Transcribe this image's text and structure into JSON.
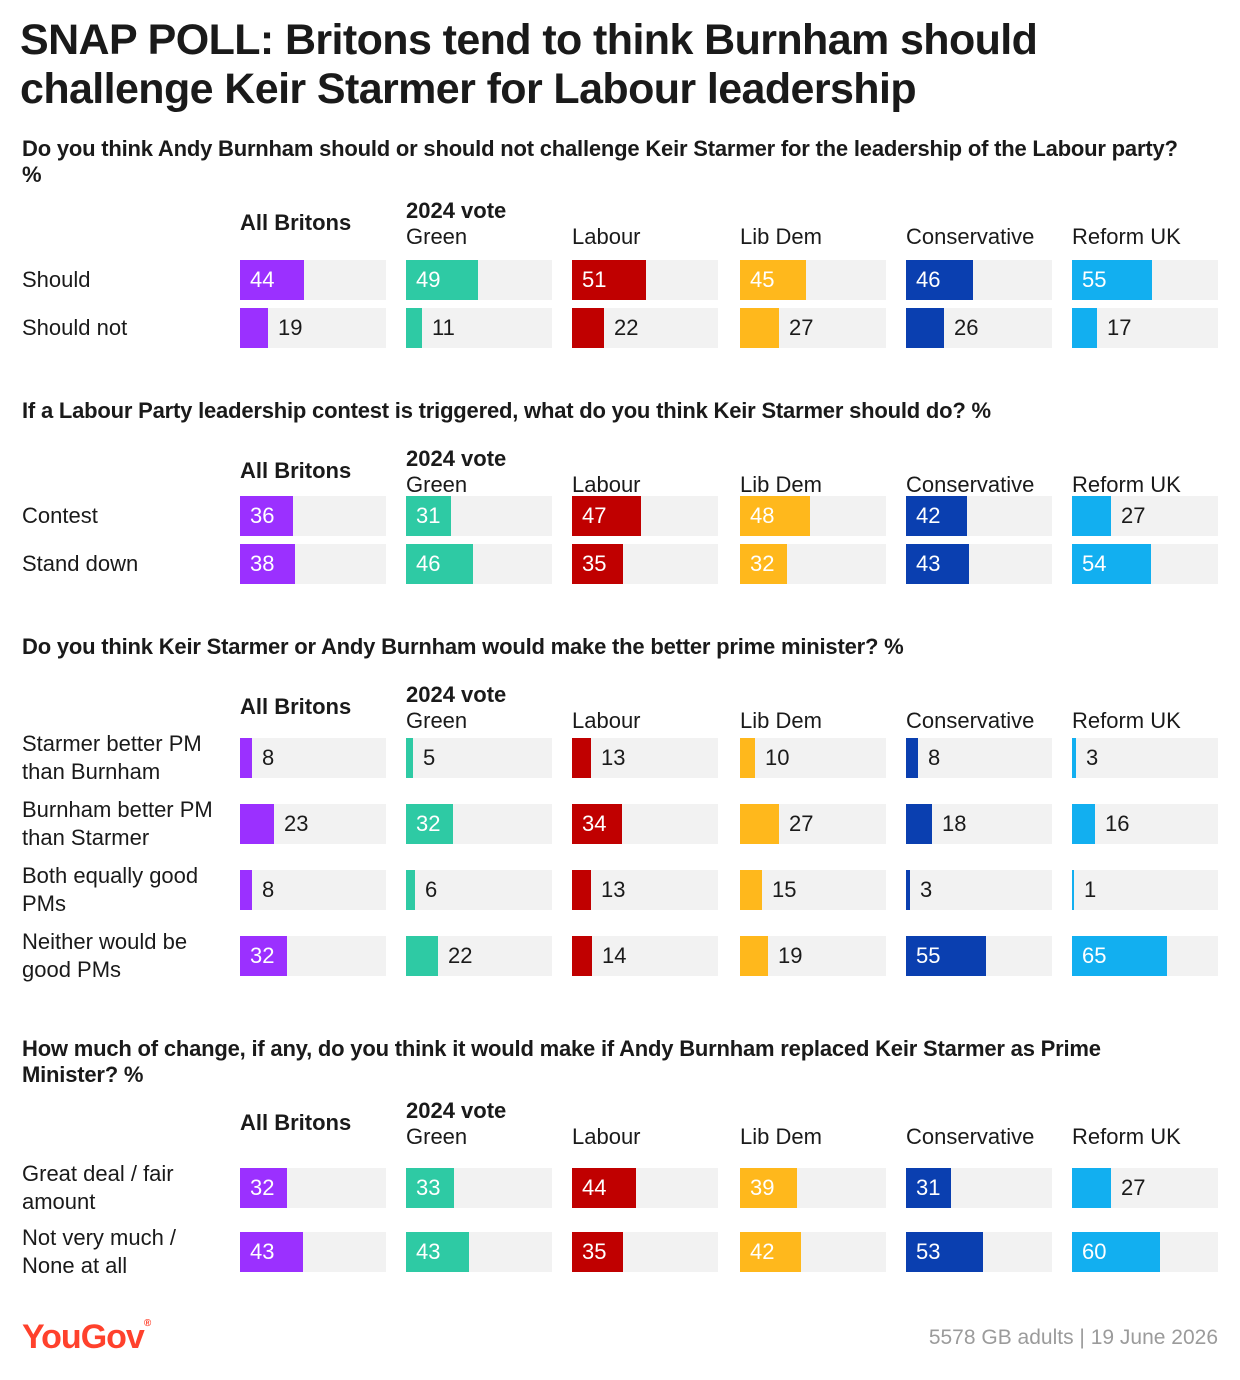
{
  "title": "SNAP POLL: Britons tend to think Burnham should challenge Keir Starmer for Labour leadership",
  "columns": {
    "all_label": "All Britons",
    "vote_group_label": "2024 vote",
    "parties": [
      "Green",
      "Labour",
      "Lib Dem",
      "Conservative",
      "Reform UK"
    ]
  },
  "colors": {
    "all": "#9b30ff",
    "green": "#2ecaa4",
    "labour": "#c00000",
    "libdem": "#ffb81c",
    "conservative": "#0a3fb0",
    "reform": "#12aff0",
    "track": "#f2f2f2"
  },
  "chart_data": [
    {
      "type": "bar",
      "title": "Do you think Andy Burnham should or should not challenge Keir Starmer for the leadership of the Labour party? %",
      "categories": [
        "All Britons",
        "Green",
        "Labour",
        "Lib Dem",
        "Conservative",
        "Reform UK"
      ],
      "rows": [
        {
          "label": "Should",
          "values": [
            44,
            49,
            51,
            45,
            46,
            55
          ]
        },
        {
          "label": "Should not",
          "values": [
            19,
            11,
            22,
            27,
            26,
            17
          ]
        }
      ]
    },
    {
      "type": "bar",
      "title": "If a Labour Party leadership contest is triggered, what do you think Keir Starmer should do? %",
      "categories": [
        "All Britons",
        "Green",
        "Labour",
        "Lib Dem",
        "Conservative",
        "Reform UK"
      ],
      "rows": [
        {
          "label": "Contest",
          "values": [
            36,
            31,
            47,
            48,
            42,
            27
          ]
        },
        {
          "label": "Stand down",
          "values": [
            38,
            46,
            35,
            32,
            43,
            54
          ]
        }
      ]
    },
    {
      "type": "bar",
      "title": "Do you think Keir Starmer or Andy Burnham would make the better prime minister? %",
      "categories": [
        "All Britons",
        "Green",
        "Labour",
        "Lib Dem",
        "Conservative",
        "Reform UK"
      ],
      "rows": [
        {
          "label": "Starmer better PM than Burnham",
          "values": [
            8,
            5,
            13,
            10,
            8,
            3
          ]
        },
        {
          "label": "Burnham better PM than Starmer",
          "values": [
            23,
            32,
            34,
            27,
            18,
            16
          ]
        },
        {
          "label": "Both equally good PMs",
          "values": [
            8,
            6,
            13,
            15,
            3,
            1
          ]
        },
        {
          "label": "Neither would be good PMs",
          "values": [
            32,
            22,
            14,
            19,
            55,
            65
          ]
        }
      ]
    },
    {
      "type": "bar",
      "title": "How much of change, if any, do you think it would make if Andy Burnham replaced Keir Starmer as Prime Minister? %",
      "categories": [
        "All Britons",
        "Green",
        "Labour",
        "Lib Dem",
        "Conservative",
        "Reform UK"
      ],
      "rows": [
        {
          "label": "Great deal / fair amount",
          "values": [
            32,
            33,
            44,
            39,
            31,
            27
          ]
        },
        {
          "label": "Not very much / None at all",
          "values": [
            43,
            43,
            35,
            42,
            53,
            60
          ]
        }
      ]
    }
  ],
  "footer": {
    "logo": "YouGov",
    "source": "5578 GB adults | 19 June 2026"
  }
}
